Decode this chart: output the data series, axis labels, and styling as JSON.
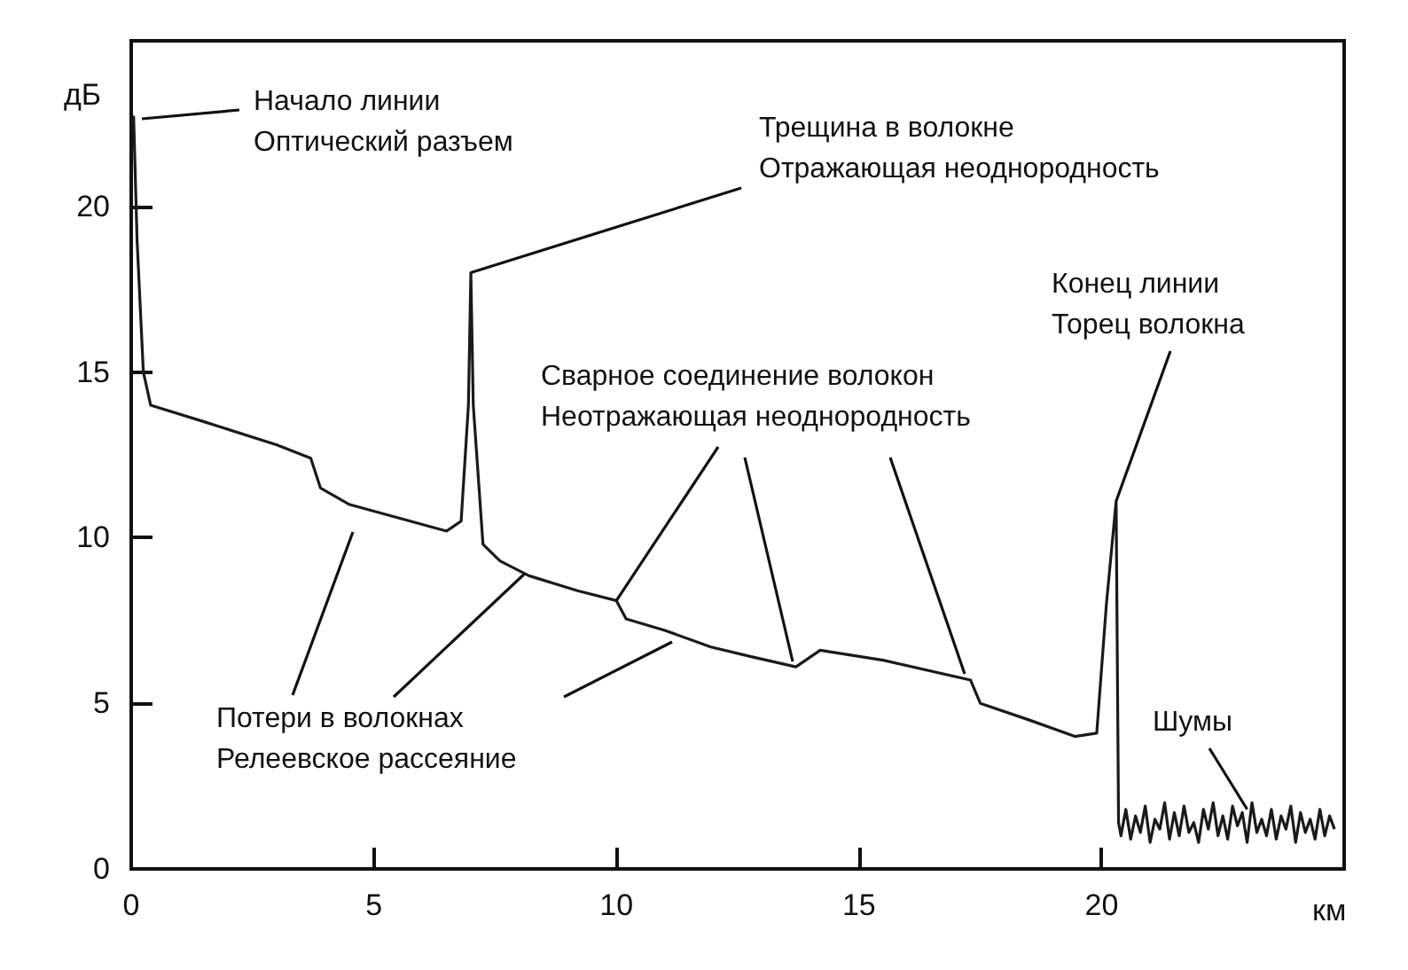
{
  "chart_data": {
    "type": "line",
    "xlabel": "км",
    "ylabel": "дБ",
    "xlim": [
      0,
      25
    ],
    "xticks": [
      0,
      5,
      10,
      15,
      20,
      {
        "value": 25,
        "label": null
      }
    ],
    "ylim": [
      0,
      25
    ],
    "yticks": [
      0,
      5,
      10,
      15,
      20,
      {
        "value": 25,
        "label": null
      }
    ],
    "grid": false,
    "marker": "none",
    "line_style": "solid",
    "series": [
      {
        "color": "#1a1a1a",
        "x": [
          0,
          0.05,
          0.12,
          0.25,
          0.4,
          1.5,
          3.0,
          3.7,
          3.9,
          4.5,
          5.5,
          6.5,
          6.8,
          6.95,
          7.0,
          7.05,
          7.25,
          7.6,
          8.2,
          9.2,
          10.0,
          10.2,
          11.0,
          11.95,
          12.8,
          13.7,
          14.2,
          15.5,
          17.3,
          17.5,
          18.5,
          19.45,
          19.9,
          20.1,
          20.3,
          20.35,
          20.4,
          20.5,
          20.6,
          20.7,
          20.8,
          20.9,
          21.0,
          21.1,
          21.2,
          21.3,
          21.4,
          21.5,
          21.6,
          21.7,
          21.8,
          21.9,
          22.0,
          22.1,
          22.2,
          22.3,
          22.4,
          22.5,
          22.6,
          22.7,
          22.8,
          22.9,
          23.0,
          23.1,
          23.2,
          23.3,
          23.4,
          23.5,
          23.6,
          23.7,
          23.8,
          23.9,
          24.0,
          24.1,
          24.2,
          24.3,
          24.4,
          24.5,
          24.6,
          24.7,
          24.8
        ],
        "values": [
          22.5,
          22.7,
          19,
          15,
          14.0,
          13.5,
          12.8,
          12.4,
          11.5,
          11.0,
          10.6,
          10.2,
          10.5,
          14,
          18.0,
          14,
          9.8,
          9.3,
          8.85,
          8.4,
          8.1,
          7.55,
          7.2,
          6.7,
          6.4,
          6.1,
          6.6,
          6.3,
          5.7,
          5.0,
          4.5,
          4.0,
          4.1,
          8,
          11.1,
          1.4,
          1.0,
          1.8,
          0.9,
          1.6,
          1.1,
          1.9,
          0.8,
          1.5,
          1.2,
          2.0,
          0.9,
          1.7,
          1.0,
          1.9,
          1.1,
          1.4,
          0.8,
          1.8,
          1.2,
          2.0,
          1.0,
          1.6,
          0.9,
          1.9,
          1.3,
          1.7,
          0.8,
          2.0,
          1.1,
          1.5,
          1.0,
          1.8,
          0.9,
          1.6,
          1.2,
          1.9,
          0.8,
          1.7,
          1.1,
          1.5,
          0.9,
          1.8,
          1.0,
          1.6,
          1.2
        ]
      }
    ],
    "annotations": [
      "Начало линии\nОптический разъем",
      {
        "text": "Трещина в волокне\nОтражающая неоднородность",
        "x": 7.0,
        "y": 18.0
      },
      {
        "text": "Сварное соединение волокон\nНеотражающая неоднородность",
        "x": 10.0,
        "y": 8.1
      },
      {
        "text": "Конец линии\nТорец волокна",
        "x": 20.3,
        "y": 11.1
      },
      {
        "text": "Потери в волокнах\nРелеевское рассеяние",
        "x": 8.1,
        "y": 8.9
      },
      {
        "text": "Шумы",
        "x": 23.0,
        "y": 1.8
      }
    ]
  }
}
